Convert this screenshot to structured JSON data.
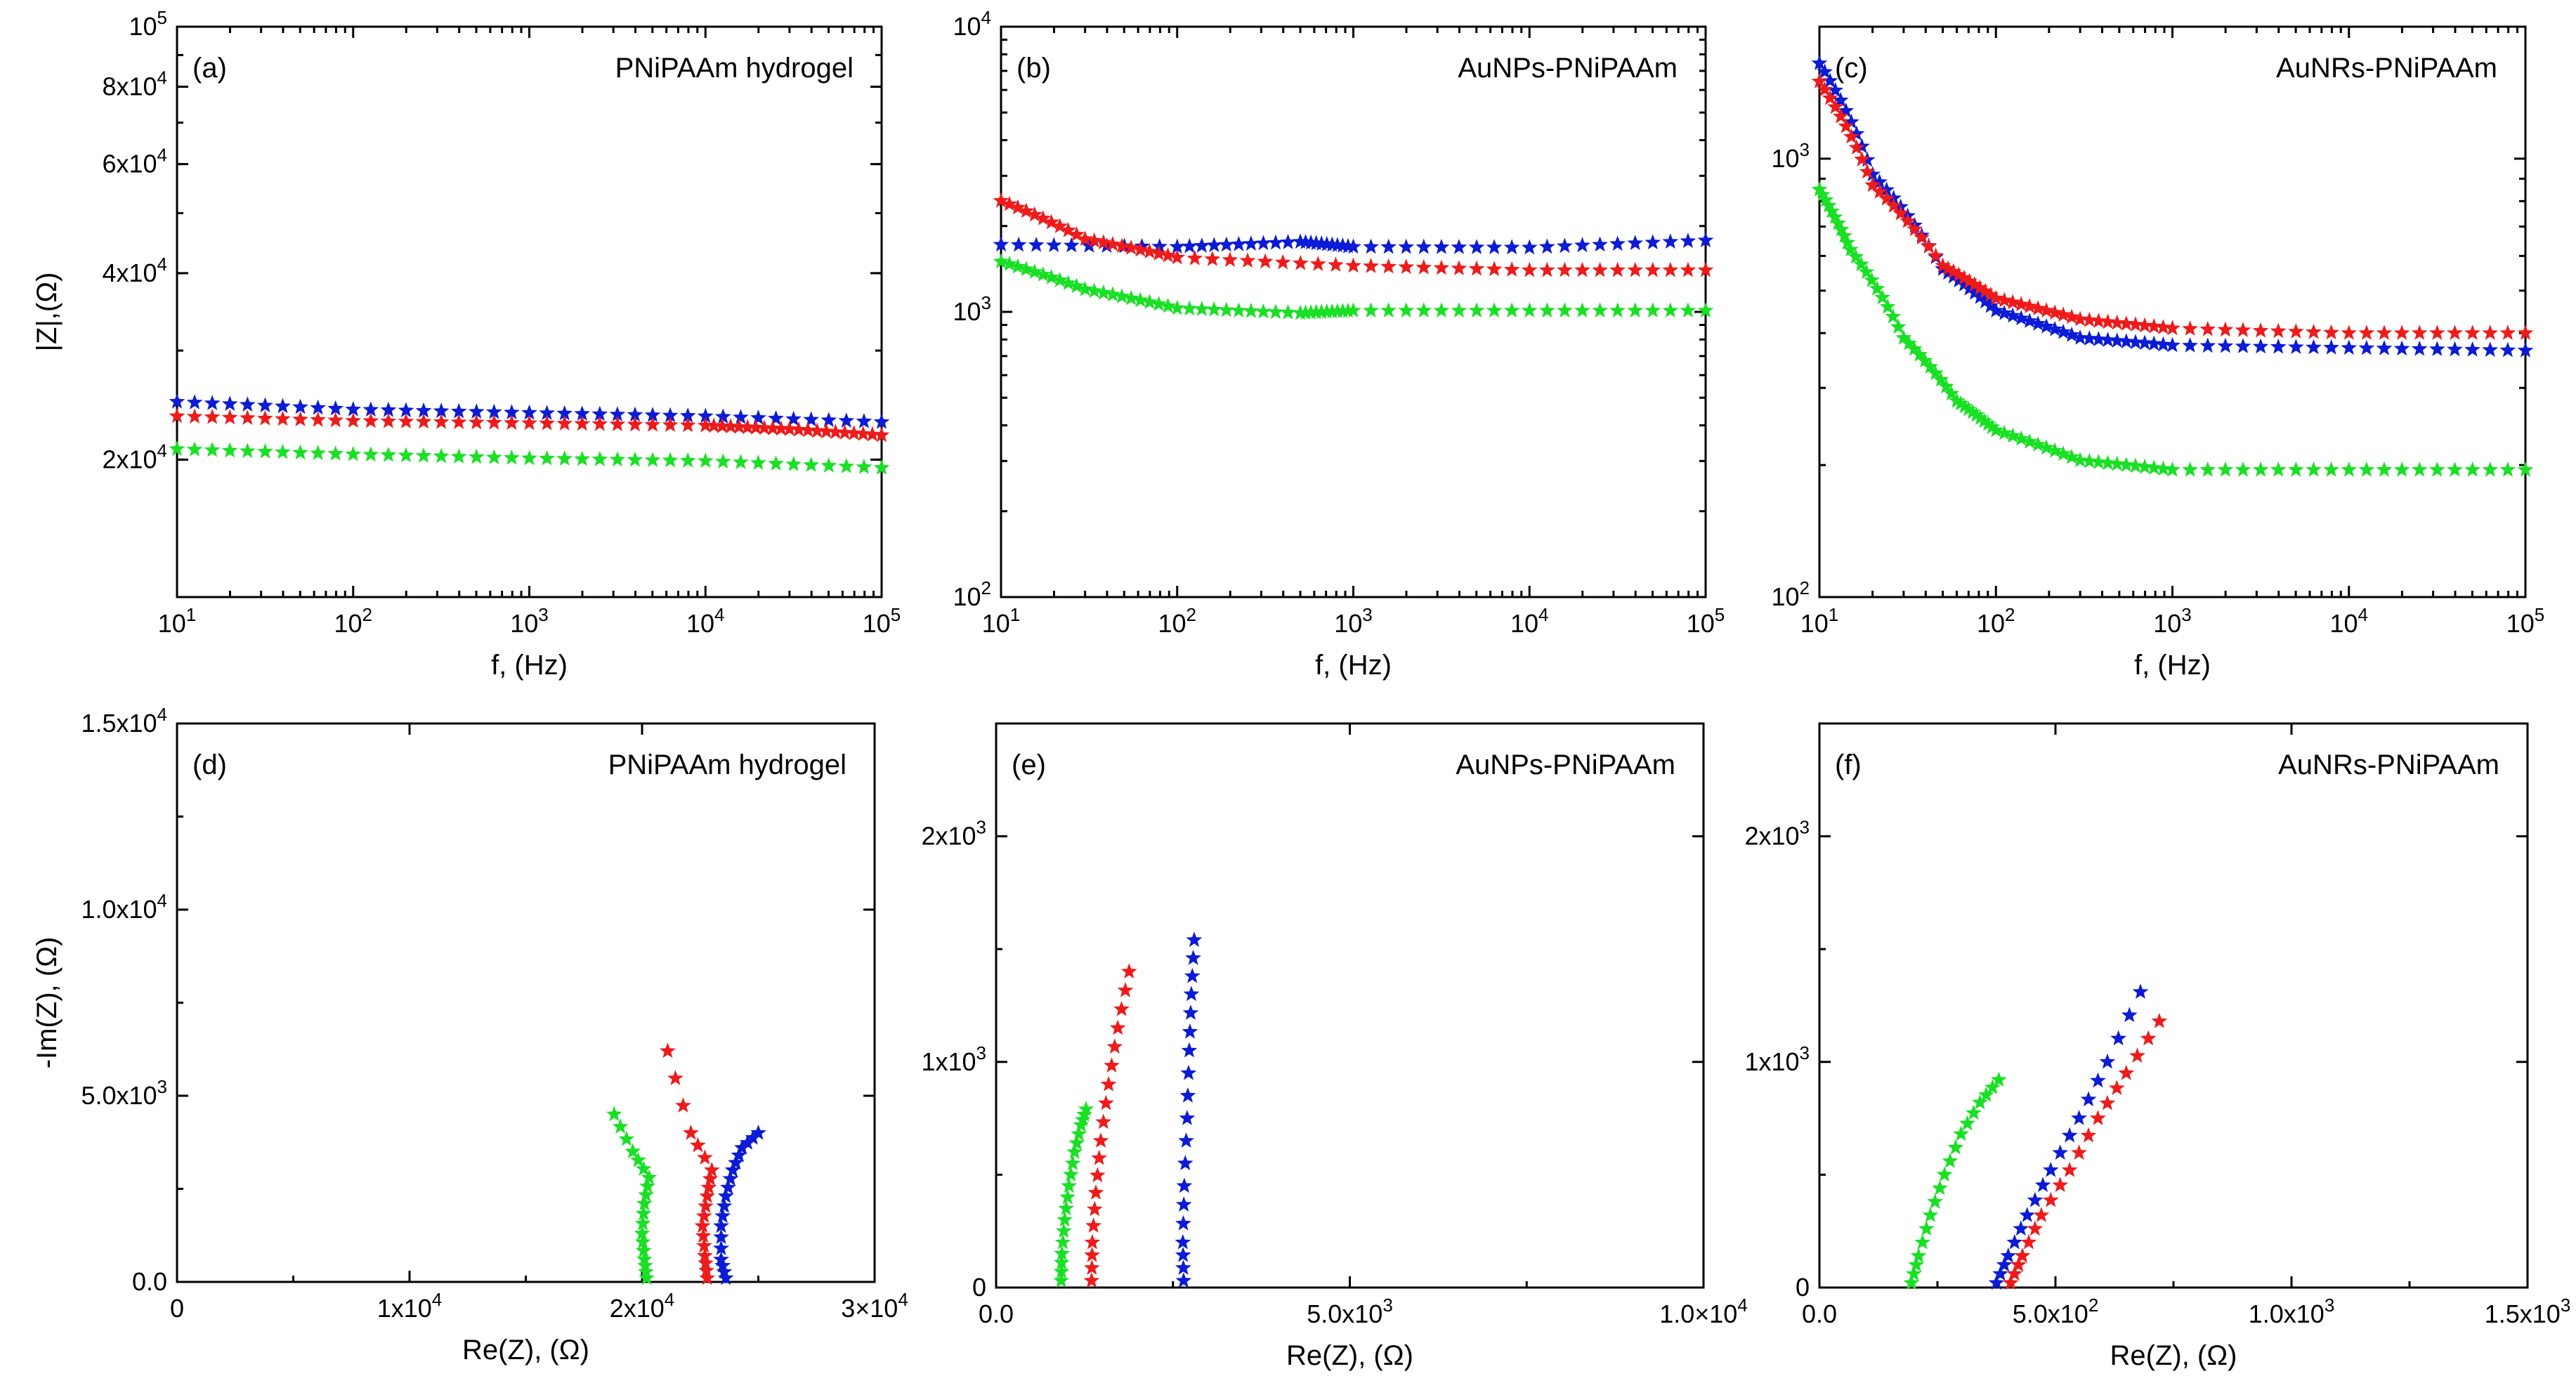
{
  "colors": {
    "blue": "#0b1bd6",
    "red": "#ee1b1b",
    "green": "#19e024"
  },
  "chart_data": [
    {
      "id": "a",
      "type": "scatter",
      "panel_label": "(a)",
      "title": "PNiPAAm hydrogel",
      "xlabel": "f, (Hz)",
      "ylabel": "|Z|,(Ω)",
      "xscale": "log",
      "yscale": "log",
      "xlim": [
        10,
        100000
      ],
      "ylim": [
        12000,
        100000
      ],
      "xticks": [
        {
          "v": 10,
          "b": "10",
          "e": "1"
        },
        {
          "v": 100,
          "b": "10",
          "e": "2"
        },
        {
          "v": 1000,
          "b": "10",
          "e": "3"
        },
        {
          "v": 10000,
          "b": "10",
          "e": "4"
        },
        {
          "v": 100000,
          "b": "10",
          "e": "5"
        }
      ],
      "yticks": [
        {
          "v": 20000,
          "b": "2x10",
          "e": "4"
        },
        {
          "v": 40000,
          "b": "4x10",
          "e": "4"
        },
        {
          "v": 60000,
          "b": "6x10",
          "e": "4"
        },
        {
          "v": 80000,
          "b": "8x10",
          "e": "4"
        },
        {
          "v": 100000,
          "b": "10",
          "e": "5"
        }
      ],
      "marker": "star",
      "series": [
        {
          "color": "blue",
          "x": [
            10,
            100,
            1000,
            10000,
            100000
          ],
          "y": [
            24800,
            24100,
            23800,
            23500,
            23000
          ]
        },
        {
          "color": "red",
          "x": [
            10,
            100,
            1000,
            10000,
            30000,
            100000
          ],
          "y": [
            23500,
            23100,
            22900,
            22700,
            22400,
            21900
          ]
        },
        {
          "color": "green",
          "x": [
            10,
            100,
            1000,
            10000,
            100000
          ],
          "y": [
            20800,
            20400,
            20100,
            19900,
            19400
          ]
        }
      ]
    },
    {
      "id": "b",
      "type": "scatter",
      "panel_label": "(b)",
      "title": "AuNPs-PNiPAAm",
      "xlabel": "f, (Hz)",
      "ylabel": "",
      "xscale": "log",
      "yscale": "log",
      "xlim": [
        10,
        100000
      ],
      "ylim": [
        100,
        10000
      ],
      "xticks": [
        {
          "v": 10,
          "b": "10",
          "e": "1"
        },
        {
          "v": 100,
          "b": "10",
          "e": "2"
        },
        {
          "v": 1000,
          "b": "10",
          "e": "3"
        },
        {
          "v": 10000,
          "b": "10",
          "e": "4"
        },
        {
          "v": 100000,
          "b": "10",
          "e": "5"
        }
      ],
      "yticks": [
        {
          "v": 100,
          "b": "10",
          "e": "2"
        },
        {
          "v": 1000,
          "b": "10",
          "e": "3"
        },
        {
          "v": 10000,
          "b": "10",
          "e": "4"
        }
      ],
      "marker": "star",
      "series": [
        {
          "color": "blue",
          "x": [
            10,
            100,
            500,
            1000,
            10000,
            100000
          ],
          "y": [
            1720,
            1690,
            1760,
            1690,
            1680,
            1780
          ]
        },
        {
          "color": "red",
          "x": [
            10,
            30,
            100,
            1000,
            10000,
            100000
          ],
          "y": [
            2450,
            1800,
            1550,
            1450,
            1400,
            1400
          ]
        },
        {
          "color": "green",
          "x": [
            10,
            30,
            100,
            500,
            1000,
            10000,
            100000
          ],
          "y": [
            1500,
            1200,
            1030,
            990,
            1010,
            1010,
            1010
          ]
        }
      ]
    },
    {
      "id": "c",
      "type": "scatter",
      "panel_label": "(c)",
      "title": "AuNRs-PNiPAAm",
      "xlabel": "f, (Hz)",
      "ylabel": "",
      "xscale": "log",
      "yscale": "log",
      "xlim": [
        10,
        100000
      ],
      "ylim": [
        100,
        2000
      ],
      "xticks": [
        {
          "v": 10,
          "b": "10",
          "e": "1"
        },
        {
          "v": 100,
          "b": "10",
          "e": "2"
        },
        {
          "v": 1000,
          "b": "10",
          "e": "3"
        },
        {
          "v": 10000,
          "b": "10",
          "e": "4"
        },
        {
          "v": 100000,
          "b": "10",
          "e": "5"
        }
      ],
      "yticks": [
        {
          "v": 100,
          "b": "10",
          "e": "2"
        },
        {
          "v": 1000,
          "b": "10",
          "e": "3"
        }
      ],
      "marker": "star",
      "series": [
        {
          "color": "blue",
          "x": [
            10,
            20,
            50,
            100,
            300,
            1000,
            10000,
            100000
          ],
          "y": [
            1650,
            920,
            560,
            450,
            390,
            375,
            370,
            365
          ]
        },
        {
          "color": "red",
          "x": [
            10,
            20,
            50,
            100,
            300,
            1000,
            10000,
            100000
          ],
          "y": [
            1500,
            870,
            570,
            480,
            430,
            410,
            400,
            400
          ]
        },
        {
          "color": "green",
          "x": [
            10,
            15,
            30,
            60,
            100,
            300,
            1000,
            10000,
            100000
          ],
          "y": [
            850,
            620,
            390,
            280,
            240,
            205,
            195,
            195,
            195
          ]
        }
      ]
    },
    {
      "id": "d",
      "type": "scatter",
      "panel_label": "(d)",
      "title": "PNiPAAm hydrogel",
      "xlabel": "Re(Z), (Ω)",
      "ylabel": "-Im(Z), (Ω)",
      "xscale": "linear",
      "yscale": "linear",
      "xlim": [
        0,
        30000
      ],
      "ylim": [
        0,
        15000
      ],
      "xticks": [
        {
          "v": 0,
          "b": "0",
          "e": ""
        },
        {
          "v": 10000,
          "b": "1x10",
          "e": "4"
        },
        {
          "v": 20000,
          "b": "2x10",
          "e": "4"
        },
        {
          "v": 30000,
          "b": "3×10",
          "e": "4"
        }
      ],
      "yticks": [
        {
          "v": 0,
          "b": "0.0",
          "e": ""
        },
        {
          "v": 5000,
          "b": "5.0x10",
          "e": "3"
        },
        {
          "v": 10000,
          "b": "1.0x10",
          "e": "4"
        },
        {
          "v": 15000,
          "b": "1.5x10",
          "e": "4"
        }
      ],
      "marker": "star",
      "series": [
        {
          "color": "blue",
          "x": [
            23600,
            23400,
            23400,
            23600,
            23900,
            24300,
            25000
          ],
          "y": [
            100,
            600,
            1500,
            2300,
            3000,
            3600,
            4000
          ]
        },
        {
          "color": "red",
          "x": [
            22800,
            22700,
            22600,
            22800,
            23000,
            22100,
            21100
          ],
          "y": [
            100,
            700,
            1500,
            2300,
            3000,
            4000,
            6200
          ]
        },
        {
          "color": "green",
          "x": [
            20200,
            20100,
            20000,
            20100,
            20300,
            19600,
            18800
          ],
          "y": [
            100,
            600,
            1300,
            2100,
            2800,
            3500,
            4500
          ]
        }
      ]
    },
    {
      "id": "e",
      "type": "scatter",
      "panel_label": "(e)",
      "title": "AuNPs-PNiPAAm",
      "xlabel": "Re(Z), (Ω)",
      "ylabel": "",
      "xscale": "linear",
      "yscale": "linear",
      "xlim": [
        0,
        10000
      ],
      "ylim": [
        0,
        2500
      ],
      "xticks": [
        {
          "v": 0,
          "b": "0.0",
          "e": ""
        },
        {
          "v": 5000,
          "b": "5.0x10",
          "e": "3"
        },
        {
          "v": 10000,
          "b": "1.0×10",
          "e": "4"
        }
      ],
      "yticks": [
        {
          "v": 0,
          "b": "0",
          "e": ""
        },
        {
          "v": 1000,
          "b": "1x10",
          "e": "3"
        },
        {
          "v": 2000,
          "b": "2x10",
          "e": "3"
        }
      ],
      "marker": "star",
      "series": [
        {
          "color": "blue",
          "x": [
            2650,
            2640,
            2660,
            2700,
            2730,
            2760,
            2800
          ],
          "y": [
            30,
            200,
            450,
            750,
            1050,
            1300,
            1540
          ]
        },
        {
          "color": "red",
          "x": [
            1350,
            1360,
            1410,
            1480,
            1590,
            1720,
            1880
          ],
          "y": [
            30,
            200,
            420,
            650,
            900,
            1150,
            1400
          ]
        },
        {
          "color": "green",
          "x": [
            920,
            930,
            970,
            1030,
            1110,
            1200,
            1270
          ],
          "y": [
            30,
            150,
            300,
            450,
            600,
            720,
            790
          ]
        }
      ]
    },
    {
      "id": "f",
      "type": "scatter",
      "panel_label": "(f)",
      "title": "AuNRs-PNiPAAm",
      "xlabel": "Re(Z), (Ω)",
      "ylabel": "",
      "xscale": "linear",
      "yscale": "linear",
      "xlim": [
        0,
        1500
      ],
      "ylim": [
        0,
        2500
      ],
      "xticks": [
        {
          "v": 0,
          "b": "0.0",
          "e": ""
        },
        {
          "v": 500,
          "b": "5.0x10",
          "e": "2"
        },
        {
          "v": 1000,
          "b": "1.0x10",
          "e": "3"
        },
        {
          "v": 1500,
          "b": "1.5x10",
          "e": "3"
        }
      ],
      "yticks": [
        {
          "v": 0,
          "b": "0",
          "e": ""
        },
        {
          "v": 1000,
          "b": "1x10",
          "e": "3"
        },
        {
          "v": 2000,
          "b": "2x10",
          "e": "3"
        }
      ],
      "marker": "star",
      "series": [
        {
          "color": "blue",
          "x": [
            375,
            400,
            440,
            490,
            550,
            610,
            680
          ],
          "y": [
            20,
            140,
            320,
            520,
            750,
            1000,
            1310
          ]
        },
        {
          "color": "red",
          "x": [
            405,
            430,
            470,
            530,
            590,
            650,
            720
          ],
          "y": [
            20,
            140,
            320,
            520,
            750,
            950,
            1180
          ]
        },
        {
          "color": "green",
          "x": [
            195,
            210,
            235,
            265,
            300,
            340,
            380
          ],
          "y": [
            20,
            140,
            320,
            500,
            680,
            820,
            920
          ]
        }
      ]
    }
  ]
}
